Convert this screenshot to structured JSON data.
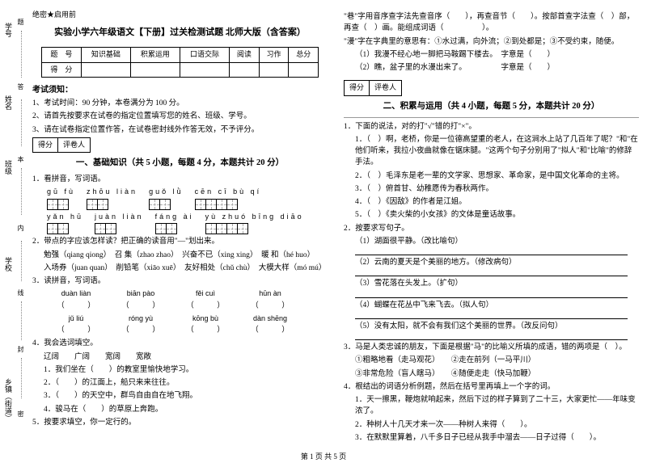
{
  "sidebar": {
    "labels": [
      "学号",
      "姓名",
      "班级",
      "学校",
      "乡镇（街道）"
    ],
    "hints": [
      "题",
      "答",
      "本",
      "内",
      "线",
      "封",
      "密"
    ]
  },
  "confidential": "绝密★启用前",
  "main_title": "实验小学六年级语文【下册】过关检测试题 北师大版（含答案）",
  "score_table": {
    "header": [
      "题　号",
      "知识基础",
      "积累运用",
      "口语交际",
      "阅读",
      "习作",
      "总分"
    ],
    "row": [
      "得　分",
      "",
      "",
      "",
      "",
      "",
      ""
    ]
  },
  "notice_title": "考试须知：",
  "notices": [
    "1、考试时间：90 分钟，本卷满分为 100 分。",
    "2、请首先按要求在试卷的指定位置填写您的姓名、班级、学号。",
    "3、请在试卷指定位置作答，在试卷密封线外作答无效，不予评分。"
  ],
  "rater": [
    "得分",
    "评卷人"
  ],
  "sec1_title": "一、基础知识（共 5 小题，每题 4 分，本题共计 20 分）",
  "q1_1": "1．看拼音，写词语。",
  "pinyin_row1": [
    {
      "py": "gū  fù",
      "n": 2
    },
    {
      "py": "zhōu liàn",
      "n": 2
    },
    {
      "py": "guǒ  lǜ",
      "n": 2
    },
    {
      "py": "cēn  cī  bù  qí",
      "n": 4
    }
  ],
  "pinyin_row2": [
    {
      "py": "yǎn hū",
      "n": 2
    },
    {
      "py": "juàn liàn",
      "n": 2
    },
    {
      "py": "fáng ài",
      "n": 2
    },
    {
      "py": "yù zhuó bīng diāo",
      "n": 4
    }
  ],
  "q1_2": "2．带点的字应该怎样读？把正确的读音用\"—\"划出来。",
  "q1_2_lines": [
    "勉强（qiang qiong）　召 集（zhao zhao）　兴奋不已（xing xing）　暖 和（hé huo）",
    "入场券（juan quan）　削铅笔（xiāo xuē）　友好相处（chǔ chù）　大模大样（mó mú）"
  ],
  "q1_3": "3．读拼音，写词语。",
  "q1_3_items": [
    {
      "py": "duàn liàn"
    },
    {
      "py": "biān pào"
    },
    {
      "py": "fěi cuì"
    },
    {
      "py": "hūn àn"
    },
    {
      "py": "jǔ liú"
    },
    {
      "py": "róng yù"
    },
    {
      "py": "kōng bù"
    },
    {
      "py": "dàn shēng"
    }
  ],
  "q1_4": "4．我会选词填空。",
  "q1_4_words": "辽阔　　广阔　　宽阔　　宽敞",
  "q1_4_lines": [
    "1．我们坐在（　　）的教室里愉快地学习。",
    "2．（　　）的江面上，船只来来往往。",
    "3．（　　）的天空中，群鸟自由自在地飞翔。",
    "4．骏马在（　　）的草原上奔跑。"
  ],
  "q1_5": "5．按要求填空，你一定行的。",
  "right_top": [
    "\"巷\"字用音序查字法先查音序（　　），再查音节（　　）。按部首查字法查（　）部，再查（　）画。能组成词语（　　　　　）。",
    "\"漫\"字在字典里的意思有：①水过满，向外流；②到处都是；③不受约束，随便。",
    "（1）我漫不经心地一脚把马鞍踢下楼去。　字意是（　　）",
    "（2）瞧，盆子里的水漫出来了。　　　　　字意是（　　）"
  ],
  "sec2_title": "二、积累与运用（共 4 小题，每题 5 分，本题共计 20 分）",
  "q2_1": "1．下面的说法，对的打\"√\"错的打\"×\"。",
  "q2_1_lines": [
    "1．（　）啊，老桥，你是一位德高望重的老人，在这涧水上站了几百年了呢？\"和\"在他们听来，我拉小夜曲就像在锯床腿。\"这两个句子分别用了\"拟人\"和\"比喻\"的修辞手法。",
    "2．（　）毛泽东是老一辈的文学家、思想家、革命家，是中国文化革命的主将。",
    "3．（　）俯首甘、幼稚愿传为春秋两作。",
    "4．（　）《因敌》的作者是江姐。",
    "5．（　）《卖火柴的小女孩》的文体是童话故事。"
  ],
  "q2_2": "2．按要求写句子。",
  "q2_2_lines": [
    "（1）湖面很平静。（改比喻句）",
    "（2）云南的夏天是个美丽的地方。（修改病句）",
    "（3）雪花落在头发上。（扩句）",
    "（4）蝴蝶在花丛中飞来飞去。（拟人句）",
    "（5）没有太阳，就不会有我们这个美丽的世界。（改反问句）"
  ],
  "q2_3": "3．马是人类忠诚的朋友，下面是根据\"马\"的比喻义所填的成语，错的两项是（　）。",
  "q2_3_lines": [
    "①粗略地看（走马观花）　　②走在前列（一马平川）",
    "③非常危险（盲人瞎马）　　④随便走走（快马加鞭）"
  ],
  "q2_4": "4．根结出的词语分析例题，然后在括号里再填上一个字的词。",
  "q2_4_lines": [
    "1．天一擦黑，鞭炮就响起来，然后下过的样子算到了二十三，大家更忙——年味变浓了。",
    "2．种树人十几天才来一次——种树人来得（　　）。",
    "3．在默默里算着，八千多日子已经从我手中溜去——日子过得（　　）。"
  ],
  "footer": "第 1 页 共 5 页"
}
